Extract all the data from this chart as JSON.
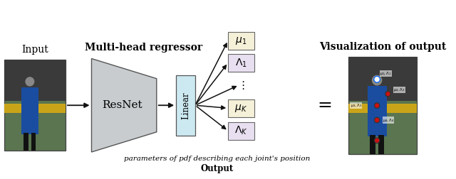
{
  "figure_bg": "#ffffff",
  "title_input": "Input",
  "title_regressor": "Multi-head regressor",
  "title_visualization": "Visualization of output",
  "label_resnet": "ResNet",
  "label_linear": "Linear",
  "output_label_main": "parameters of pdf describing each joint's position",
  "output_label_bold": "Output",
  "trapezoid_fill": "#c8cccf",
  "trapezoid_edge": "#555555",
  "linear_fill": "#cce8f0",
  "linear_edge": "#555555",
  "mu_box_fill": "#f5f0d8",
  "lambda_box_fill": "#e8dff0",
  "box_edge": "#666666",
  "arrow_color": "#111111",
  "equal_sign": "=",
  "img_bg": "#5a7550",
  "img_top": "#404040",
  "img_banner": "#c8a020",
  "img_person": "#1a4da0",
  "img_legs": "#111111",
  "img_border": "#444444",
  "xlim": [
    0,
    10
  ],
  "ylim": [
    0,
    4
  ]
}
